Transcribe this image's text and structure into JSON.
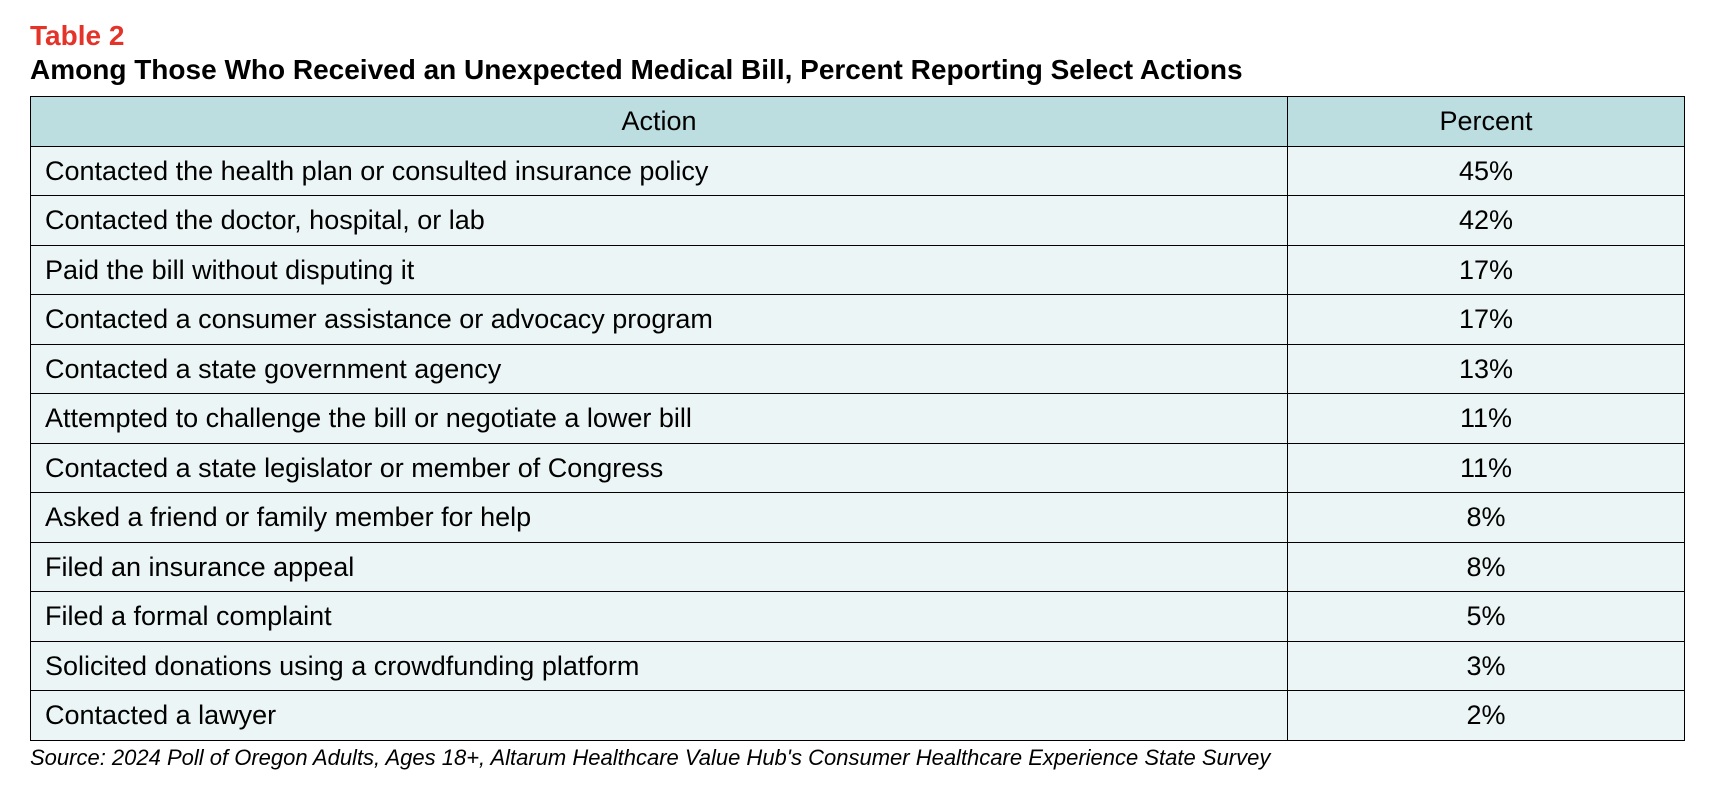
{
  "table_number": "Table 2",
  "table_title": "Among Those Who Received an Unexpected Medical Bill, Percent Reporting Select Actions",
  "columns": {
    "action": "Action",
    "percent": "Percent"
  },
  "rows": [
    {
      "action": "Contacted the health plan or consulted insurance policy",
      "percent": "45%"
    },
    {
      "action": "Contacted the doctor, hospital, or lab",
      "percent": "42%"
    },
    {
      "action": "Paid the bill without disputing it",
      "percent": "17%"
    },
    {
      "action": "Contacted a consumer assistance or advocacy program",
      "percent": "17%"
    },
    {
      "action": "Contacted a state government agency",
      "percent": "13%"
    },
    {
      "action": "Attempted to challenge the bill or negotiate a lower bill",
      "percent": "11%"
    },
    {
      "action": "Contacted a state legislator or member of Congress",
      "percent": "11%"
    },
    {
      "action": "Asked a friend or family member for help",
      "percent": "8%"
    },
    {
      "action": "Filed an insurance appeal",
      "percent": "8%"
    },
    {
      "action": "Filed a formal complaint",
      "percent": "5%"
    },
    {
      "action": "Solicited donations using a crowdfunding platform",
      "percent": "3%"
    },
    {
      "action": "Contacted a lawyer",
      "percent": "2%"
    }
  ],
  "source": "Source: 2024 Poll of Oregon Adults, Ages 18+, Altarum Healthcare Value Hub's Consumer Healthcare Experience State Survey",
  "colors": {
    "table_number": "#e4342a",
    "title_text": "#000000",
    "header_bg": "#bcdee0",
    "row_bg": "#ebf5f5",
    "border": "#000000",
    "source_text": "#000000"
  },
  "typography": {
    "title_fontsize": 28,
    "title_fontweight": 600,
    "cell_fontsize": 27,
    "source_fontsize": 22
  },
  "layout": {
    "action_col_width_pct": 76,
    "percent_col_width_pct": 24
  }
}
